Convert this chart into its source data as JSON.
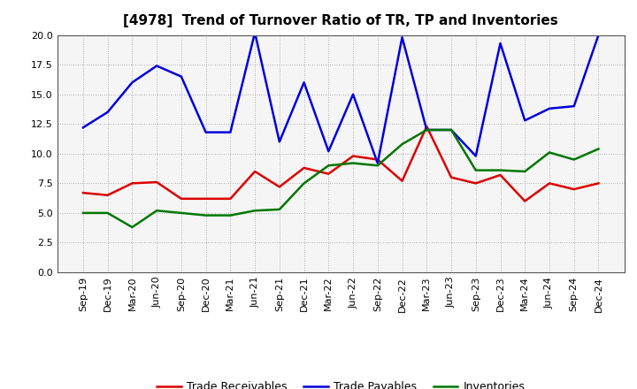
{
  "title": "[4978]  Trend of Turnover Ratio of TR, TP and Inventories",
  "x_labels": [
    "Sep-19",
    "Dec-19",
    "Mar-20",
    "Jun-20",
    "Sep-20",
    "Dec-20",
    "Mar-21",
    "Jun-21",
    "Sep-21",
    "Dec-21",
    "Mar-22",
    "Jun-22",
    "Sep-22",
    "Dec-22",
    "Mar-23",
    "Jun-23",
    "Sep-23",
    "Dec-23",
    "Mar-24",
    "Jun-24",
    "Sep-24",
    "Dec-24"
  ],
  "trade_receivables": [
    6.7,
    6.5,
    7.5,
    7.6,
    6.2,
    6.2,
    6.2,
    8.5,
    7.2,
    8.8,
    8.3,
    9.8,
    9.5,
    7.7,
    12.3,
    8.0,
    7.5,
    8.2,
    6.0,
    7.5,
    7.0,
    7.5
  ],
  "trade_payables": [
    12.2,
    13.5,
    16.0,
    17.4,
    16.5,
    11.8,
    11.8,
    20.2,
    11.0,
    16.0,
    10.2,
    15.0,
    9.2,
    19.8,
    12.0,
    12.0,
    9.8,
    19.3,
    12.8,
    13.8,
    14.0,
    20.0
  ],
  "inventories": [
    5.0,
    5.0,
    3.8,
    5.2,
    5.0,
    4.8,
    4.8,
    5.2,
    5.3,
    7.5,
    9.0,
    9.2,
    9.0,
    10.8,
    12.0,
    12.0,
    8.6,
    8.6,
    8.5,
    10.1,
    9.5,
    10.4
  ],
  "ylim": [
    0.0,
    20.0
  ],
  "yticks": [
    0.0,
    2.5,
    5.0,
    7.5,
    10.0,
    12.5,
    15.0,
    17.5,
    20.0
  ],
  "tr_color": "#dd0000",
  "tp_color": "#0000dd",
  "inv_color": "#007700",
  "background_color": "#ffffff",
  "plot_bg_color": "#f5f5f5",
  "grid_color": "#999999",
  "legend_tr": "Trade Receivables",
  "legend_tp": "Trade Payables",
  "legend_inv": "Inventories",
  "title_fontsize": 11,
  "tick_fontsize": 8,
  "linewidth": 1.8
}
